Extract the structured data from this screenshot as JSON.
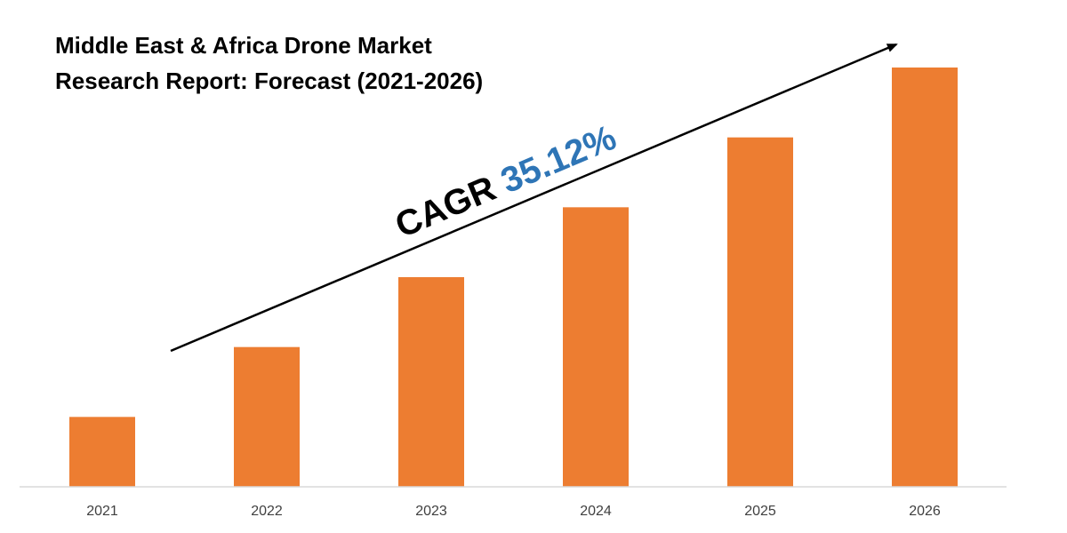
{
  "chart_data": {
    "type": "bar",
    "title_lines": [
      "Middle East & Africa Drone Market",
      "Research Report: Forecast (2021-2026)"
    ],
    "categories": [
      "2021",
      "2022",
      "2023",
      "2024",
      "2025",
      "2026"
    ],
    "values": [
      1.0,
      2.0,
      3.0,
      4.0,
      5.0,
      6.0
    ],
    "ylim": [
      0,
      6.0
    ],
    "xlabel": "",
    "ylabel": "",
    "grid": false,
    "legend": "none",
    "annotation": {
      "prefix": "CAGR",
      "value": "35.12%"
    },
    "colors": {
      "bar": "#ED7D31",
      "annotation_value": "#2E75B6",
      "annotation_prefix": "#000000",
      "arrow": "#000000",
      "axis": "#D9D9D9"
    }
  }
}
